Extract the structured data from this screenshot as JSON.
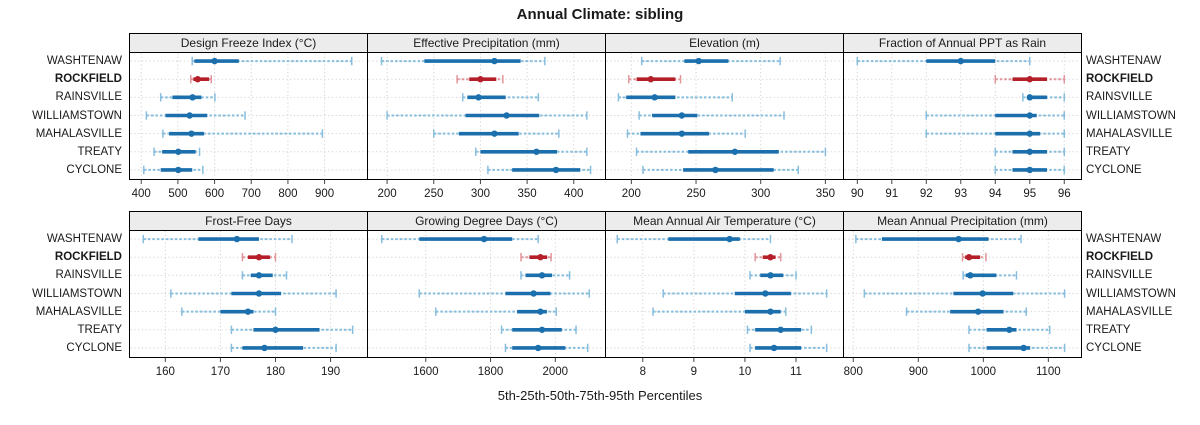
{
  "title": "Annual Climate: sibling",
  "xlabel": "5th-25th-50th-75th-95th Percentiles",
  "categories": [
    "WASHTENAW",
    "ROCKFIELD",
    "RAINSVILLE",
    "WILLIAMSTOWN",
    "MAHALASVILLE",
    "TREATY",
    "CYCLONE"
  ],
  "highlight": "ROCKFIELD",
  "colors": {
    "blue_dark": "#1c6fad",
    "blue_light": "#88bedd",
    "red_dark": "#b51f29",
    "red_light": "#e2969b",
    "grid": "#d2d2d2",
    "strip_bg": "#ececec",
    "border": "#000000",
    "tick": "#444444",
    "text": "#1a1a1a"
  },
  "chart_data": {
    "type": "dotplot",
    "percentiles": [
      5,
      25,
      50,
      75,
      95
    ],
    "layout": {
      "rows": 2,
      "cols": 4,
      "grid": true,
      "row_labels_both_sides": true
    },
    "panels": [
      {
        "title": "Design Freeze Index (°C)",
        "xlim": [
          368,
          1017
        ],
        "ticks": [
          400,
          500,
          600,
          700,
          800,
          900
        ],
        "series": {
          "WASHTENAW": [
            539,
            545,
            600,
            666,
            974
          ],
          "ROCKFIELD": [
            535,
            542,
            554,
            585,
            591
          ],
          "RAINSVILLE": [
            453,
            485,
            540,
            564,
            601
          ],
          "WILLIAMSTOWN": [
            414,
            466,
            532,
            580,
            683
          ],
          "MAHALASVILLE": [
            459,
            476,
            537,
            571,
            894
          ],
          "TREATY": [
            435,
            457,
            501,
            548,
            559
          ],
          "CYCLONE": [
            407,
            453,
            501,
            539,
            568
          ]
        }
      },
      {
        "title": "Effective Precipitation (mm)",
        "xlim": [
          179,
          434
        ],
        "ticks": [
          200,
          250,
          300,
          350,
          400
        ],
        "series": {
          "WASHTENAW": [
            194,
            240,
            315,
            343,
            369
          ],
          "ROCKFIELD": [
            275,
            288,
            300,
            317,
            324
          ],
          "RAINSVILLE": [
            281,
            286,
            298,
            327,
            362
          ],
          "WILLIAMSTOWN": [
            200,
            284,
            328,
            363,
            414
          ],
          "MAHALASVILLE": [
            250,
            277,
            315,
            341,
            384
          ],
          "TREATY": [
            295,
            300,
            360,
            382,
            414
          ],
          "CYCLONE": [
            308,
            334,
            381,
            407,
            418
          ]
        }
      },
      {
        "title": "Elevation (m)",
        "xlim": [
          180,
          364
        ],
        "ticks": [
          200,
          250,
          300,
          350
        ],
        "series": {
          "WASHTENAW": [
            208,
            241,
            252,
            275,
            315
          ],
          "ROCKFIELD": [
            198,
            204,
            215,
            234,
            238
          ],
          "RAINSVILLE": [
            190,
            196,
            218,
            234,
            278
          ],
          "WILLIAMSTOWN": [
            206,
            216,
            239,
            251,
            318
          ],
          "MAHALASVILLE": [
            197,
            207,
            239,
            260,
            288
          ],
          "TREATY": [
            204,
            244,
            280,
            314,
            350
          ],
          "CYCLONE": [
            209,
            240,
            265,
            310,
            329
          ]
        }
      },
      {
        "title": "Fraction of Annual PPT as Rain",
        "xlim": [
          89.6,
          96.5
        ],
        "ticks": [
          90,
          91,
          92,
          93,
          94,
          95,
          96
        ],
        "series": {
          "WASHTENAW": [
            90,
            92,
            93,
            94,
            95
          ],
          "ROCKFIELD": [
            94,
            94.5,
            95,
            95.5,
            96
          ],
          "RAINSVILLE": [
            94.8,
            95,
            95,
            95.5,
            96
          ],
          "WILLIAMSTOWN": [
            92,
            94,
            95,
            95.2,
            96
          ],
          "MAHALASVILLE": [
            92,
            94,
            95,
            95.3,
            96
          ],
          "TREATY": [
            94,
            94.5,
            95,
            95.5,
            96
          ],
          "CYCLONE": [
            94,
            94.5,
            95,
            95.5,
            96
          ]
        }
      },
      {
        "title": "Frost-Free Days",
        "xlim": [
          153.5,
          196.7
        ],
        "ticks": [
          160,
          170,
          180,
          190
        ],
        "series": {
          "WASHTENAW": [
            156,
            166,
            173,
            177,
            183
          ],
          "ROCKFIELD": [
            174,
            175,
            177,
            179,
            180
          ],
          "RAINSVILLE": [
            174,
            175.5,
            177,
            179.5,
            182
          ],
          "WILLIAMSTOWN": [
            161,
            172,
            177,
            181,
            191
          ],
          "MAHALASVILLE": [
            163,
            170,
            175,
            176,
            180
          ],
          "TREATY": [
            172,
            176,
            180,
            188,
            194
          ],
          "CYCLONE": [
            172,
            174,
            178,
            185,
            191
          ]
        }
      },
      {
        "title": "Growing Degree Days (°C)",
        "xlim": [
          1420,
          2155
        ],
        "ticks": [
          1600,
          1800,
          2000
        ],
        "series": {
          "WASHTENAW": [
            1464,
            1580,
            1780,
            1867,
            1947
          ],
          "ROCKFIELD": [
            1894,
            1920,
            1954,
            1975,
            1987
          ],
          "RAINSVILLE": [
            1894,
            1908,
            1959,
            1990,
            2044
          ],
          "WILLIAMSTOWN": [
            1580,
            1846,
            1933,
            1985,
            2105
          ],
          "MAHALASVILLE": [
            1631,
            1882,
            1954,
            1974,
            2003
          ],
          "TREATY": [
            1834,
            1867,
            1959,
            2020,
            2064
          ],
          "CYCLONE": [
            1846,
            1867,
            1947,
            2031,
            2100
          ]
        }
      },
      {
        "title": "Mean Annual Air Temperature (°C)",
        "xlim": [
          7.27,
          11.93
        ],
        "ticks": [
          8,
          9,
          10,
          11
        ],
        "series": {
          "WASHTENAW": [
            7.5,
            8.5,
            9.7,
            9.9,
            10.5
          ],
          "ROCKFIELD": [
            10.2,
            10.35,
            10.5,
            10.6,
            10.7
          ],
          "RAINSVILLE": [
            10.1,
            10.3,
            10.5,
            10.75,
            11.0
          ],
          "WILLIAMSTOWN": [
            8.4,
            9.8,
            10.4,
            10.9,
            11.6
          ],
          "MAHALASVILLE": [
            8.2,
            10.0,
            10.5,
            10.7,
            10.8
          ],
          "TREATY": [
            10.05,
            10.2,
            10.7,
            11.1,
            11.3
          ],
          "CYCLONE": [
            10.1,
            10.2,
            10.57,
            11.1,
            11.6
          ]
        }
      },
      {
        "title": "Mean Annual Precipitation (mm)",
        "xlim": [
          785,
          1151
        ],
        "ticks": [
          800,
          900,
          1000,
          1100
        ],
        "series": {
          "WASHTENAW": [
            804,
            844,
            962,
            1008,
            1058
          ],
          "ROCKFIELD": [
            968,
            972,
            978,
            995,
            1004
          ],
          "RAINSVILLE": [
            969,
            973,
            980,
            1020,
            1051
          ],
          "WILLIAMSTOWN": [
            817,
            954,
            999,
            1046,
            1125
          ],
          "MAHALASVILLE": [
            882,
            949,
            992,
            1031,
            1066
          ],
          "TREATY": [
            978,
            1005,
            1040,
            1051,
            1102
          ],
          "CYCLONE": [
            978,
            1005,
            1062,
            1072,
            1125
          ]
        }
      }
    ]
  }
}
